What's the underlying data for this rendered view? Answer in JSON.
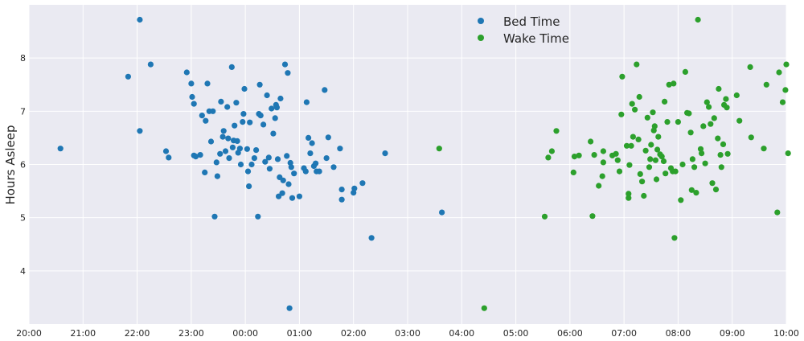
{
  "chart_data": {
    "type": "scatter",
    "title": "",
    "xlabel": "",
    "ylabel": "Hours Asleep",
    "xlim": [
      "20:00",
      "10:00"
    ],
    "ylim": [
      3.0,
      9.0
    ],
    "x_ticks": [
      "20:00",
      "21:00",
      "22:00",
      "23:00",
      "00:00",
      "01:00",
      "02:00",
      "03:00",
      "04:00",
      "05:00",
      "06:00",
      "07:00",
      "08:00",
      "09:00",
      "10:00"
    ],
    "y_ticks": [
      4,
      5,
      6,
      7,
      8
    ],
    "grid": true,
    "legend_position": "top-center",
    "background_color": "#EAEAF2",
    "series": [
      {
        "name": "Bed Time",
        "color": "#1F77B4",
        "points": [
          [
            "20:35",
            6.3
          ],
          [
            "21:50",
            7.65
          ],
          [
            "22:03",
            8.72
          ],
          [
            "22:03",
            6.63
          ],
          [
            "22:15",
            7.88
          ],
          [
            "22:32",
            6.25
          ],
          [
            "22:35",
            6.13
          ],
          [
            "22:55",
            7.73
          ],
          [
            "23:00",
            7.52
          ],
          [
            "23:01",
            7.27
          ],
          [
            "23:03",
            7.14
          ],
          [
            "23:03",
            6.17
          ],
          [
            "23:05",
            6.15
          ],
          [
            "23:10",
            6.18
          ],
          [
            "23:12",
            6.92
          ],
          [
            "23:15",
            5.85
          ],
          [
            "23:16",
            6.82
          ],
          [
            "23:18",
            7.52
          ],
          [
            "23:20",
            7.0
          ],
          [
            "23:22",
            6.43
          ],
          [
            "23:24",
            7.0
          ],
          [
            "23:26",
            5.02
          ],
          [
            "23:28",
            6.04
          ],
          [
            "23:29",
            5.78
          ],
          [
            "23:32",
            6.2
          ],
          [
            "23:33",
            7.18
          ],
          [
            "23:35",
            6.52
          ],
          [
            "23:36",
            6.63
          ],
          [
            "23:38",
            6.25
          ],
          [
            "23:40",
            7.08
          ],
          [
            "23:41",
            6.49
          ],
          [
            "23:42",
            6.12
          ],
          [
            "23:45",
            7.83
          ],
          [
            "23:46",
            6.32
          ],
          [
            "23:47",
            6.45
          ],
          [
            "23:48",
            6.73
          ],
          [
            "23:50",
            7.16
          ],
          [
            "23:51",
            6.44
          ],
          [
            "23:52",
            6.22
          ],
          [
            "23:54",
            6.3
          ],
          [
            "23:55",
            6.0
          ],
          [
            "23:57",
            6.8
          ],
          [
            "23:58",
            6.95
          ],
          [
            "23:59",
            7.42
          ],
          [
            "00:02",
            6.29
          ],
          [
            "00:03",
            5.87
          ],
          [
            "00:04",
            5.59
          ],
          [
            "00:05",
            6.79
          ],
          [
            "00:07",
            6.0
          ],
          [
            "00:10",
            6.12
          ],
          [
            "00:12",
            6.27
          ],
          [
            "00:14",
            5.02
          ],
          [
            "00:15",
            6.95
          ],
          [
            "00:16",
            7.5
          ],
          [
            "00:17",
            6.92
          ],
          [
            "00:20",
            6.75
          ],
          [
            "00:22",
            6.05
          ],
          [
            "00:24",
            7.3
          ],
          [
            "00:26",
            6.13
          ],
          [
            "00:27",
            5.92
          ],
          [
            "00:29",
            7.05
          ],
          [
            "00:31",
            6.58
          ],
          [
            "00:33",
            6.87
          ],
          [
            "00:34",
            7.12
          ],
          [
            "00:35",
            7.07
          ],
          [
            "00:36",
            6.1
          ],
          [
            "00:37",
            5.4
          ],
          [
            "00:38",
            5.76
          ],
          [
            "00:39",
            7.24
          ],
          [
            "00:41",
            5.46
          ],
          [
            "00:42",
            5.7
          ],
          [
            "00:44",
            7.88
          ],
          [
            "00:46",
            6.16
          ],
          [
            "00:47",
            7.72
          ],
          [
            "00:48",
            5.63
          ],
          [
            "00:49",
            3.3
          ],
          [
            "00:50",
            6.03
          ],
          [
            "00:51",
            5.95
          ],
          [
            "00:52",
            5.37
          ],
          [
            "00:54",
            5.83
          ],
          [
            "01:00",
            5.4
          ],
          [
            "01:05",
            5.93
          ],
          [
            "01:07",
            5.87
          ],
          [
            "01:08",
            7.17
          ],
          [
            "01:10",
            6.5
          ],
          [
            "01:12",
            6.21
          ],
          [
            "01:14",
            6.4
          ],
          [
            "01:16",
            5.97
          ],
          [
            "01:18",
            6.02
          ],
          [
            "01:19",
            5.87
          ],
          [
            "01:22",
            5.87
          ],
          [
            "01:28",
            7.4
          ],
          [
            "01:30",
            6.12
          ],
          [
            "01:32",
            6.51
          ],
          [
            "01:38",
            5.95
          ],
          [
            "01:45",
            6.3
          ],
          [
            "01:47",
            5.53
          ],
          [
            "01:47",
            5.34
          ],
          [
            "02:00",
            5.47
          ],
          [
            "02:01",
            5.55
          ],
          [
            "02:10",
            5.65
          ],
          [
            "02:20",
            4.62
          ],
          [
            "02:35",
            6.21
          ],
          [
            "03:38",
            5.1
          ]
        ]
      },
      {
        "name": "Wake Time",
        "color": "#2CA02C",
        "points": [
          [
            "03:35",
            6.3
          ],
          [
            "04:25",
            3.3
          ],
          [
            "05:32",
            5.02
          ],
          [
            "05:36",
            6.13
          ],
          [
            "05:40",
            6.25
          ],
          [
            "05:45",
            6.63
          ],
          [
            "06:04",
            5.85
          ],
          [
            "06:05",
            6.15
          ],
          [
            "06:10",
            6.17
          ],
          [
            "06:23",
            6.43
          ],
          [
            "06:25",
            5.03
          ],
          [
            "06:27",
            6.18
          ],
          [
            "06:32",
            5.6
          ],
          [
            "06:36",
            5.78
          ],
          [
            "06:37",
            6.04
          ],
          [
            "06:37",
            6.25
          ],
          [
            "06:47",
            6.17
          ],
          [
            "06:51",
            6.2
          ],
          [
            "06:53",
            6.08
          ],
          [
            "06:55",
            5.87
          ],
          [
            "06:57",
            6.94
          ],
          [
            "06:58",
            7.65
          ],
          [
            "07:03",
            6.35
          ],
          [
            "07:05",
            5.37
          ],
          [
            "07:05",
            5.45
          ],
          [
            "07:06",
            5.99
          ],
          [
            "07:08",
            6.35
          ],
          [
            "07:09",
            7.14
          ],
          [
            "07:10",
            6.52
          ],
          [
            "07:12",
            7.03
          ],
          [
            "07:14",
            7.88
          ],
          [
            "07:16",
            6.47
          ],
          [
            "07:17",
            7.27
          ],
          [
            "07:18",
            5.82
          ],
          [
            "07:20",
            5.68
          ],
          [
            "07:22",
            5.41
          ],
          [
            "07:24",
            6.26
          ],
          [
            "07:26",
            6.88
          ],
          [
            "07:28",
            5.95
          ],
          [
            "07:29",
            6.1
          ],
          [
            "07:30",
            6.37
          ],
          [
            "07:32",
            6.98
          ],
          [
            "07:33",
            6.64
          ],
          [
            "07:34",
            6.72
          ],
          [
            "07:35",
            6.08
          ],
          [
            "07:36",
            5.72
          ],
          [
            "07:37",
            6.28
          ],
          [
            "07:38",
            6.52
          ],
          [
            "07:40",
            6.19
          ],
          [
            "07:42",
            6.15
          ],
          [
            "07:44",
            6.06
          ],
          [
            "07:45",
            7.18
          ],
          [
            "07:46",
            5.83
          ],
          [
            "07:48",
            6.8
          ],
          [
            "07:50",
            7.5
          ],
          [
            "07:52",
            5.93
          ],
          [
            "07:54",
            5.87
          ],
          [
            "07:55",
            7.52
          ],
          [
            "07:56",
            4.62
          ],
          [
            "07:57",
            5.87
          ],
          [
            "08:00",
            6.8
          ],
          [
            "08:03",
            5.33
          ],
          [
            "08:05",
            6.0
          ],
          [
            "08:08",
            7.74
          ],
          [
            "08:10",
            6.97
          ],
          [
            "08:12",
            6.96
          ],
          [
            "08:14",
            6.6
          ],
          [
            "08:15",
            5.52
          ],
          [
            "08:16",
            6.1
          ],
          [
            "08:18",
            5.95
          ],
          [
            "08:20",
            5.47
          ],
          [
            "08:22",
            8.72
          ],
          [
            "08:25",
            6.29
          ],
          [
            "08:26",
            6.21
          ],
          [
            "08:28",
            6.72
          ],
          [
            "08:30",
            6.02
          ],
          [
            "08:32",
            7.17
          ],
          [
            "08:34",
            7.08
          ],
          [
            "08:36",
            6.76
          ],
          [
            "08:38",
            5.65
          ],
          [
            "08:40",
            6.87
          ],
          [
            "08:42",
            5.53
          ],
          [
            "08:44",
            6.49
          ],
          [
            "08:45",
            7.42
          ],
          [
            "08:47",
            6.18
          ],
          [
            "08:48",
            5.95
          ],
          [
            "08:50",
            6.38
          ],
          [
            "08:51",
            7.12
          ],
          [
            "08:53",
            7.23
          ],
          [
            "08:54",
            7.07
          ],
          [
            "08:55",
            6.2
          ],
          [
            "09:05",
            7.3
          ],
          [
            "09:08",
            6.82
          ],
          [
            "09:20",
            7.83
          ],
          [
            "09:21",
            6.51
          ],
          [
            "09:35",
            6.3
          ],
          [
            "09:38",
            7.5
          ],
          [
            "09:50",
            5.1
          ],
          [
            "09:52",
            7.73
          ],
          [
            "09:56",
            7.17
          ],
          [
            "09:59",
            7.4
          ],
          [
            "10:00",
            7.88
          ],
          [
            "10:02",
            6.21
          ]
        ]
      }
    ]
  }
}
